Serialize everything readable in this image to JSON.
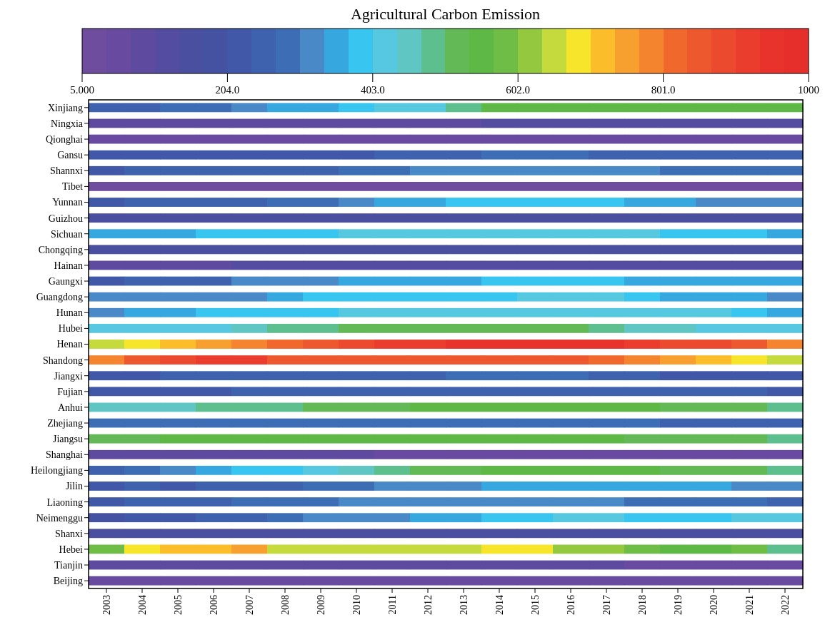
{
  "chart_data": {
    "type": "heatmap",
    "title": "Agricultural Carbon Emission",
    "categories": [
      "2003",
      "2004",
      "2005",
      "2006",
      "2007",
      "2008",
      "2009",
      "2010",
      "2011",
      "2012",
      "2013",
      "2014",
      "2015",
      "2016",
      "2017",
      "2018",
      "2019",
      "2020",
      "2021",
      "2022"
    ],
    "y_categories": [
      "Xinjiang",
      "Ningxia",
      "Qionghai",
      "Gansu",
      "Shannxi",
      "Tibet",
      "Yunnan",
      "Guizhou",
      "Sichuan",
      "Chongqing",
      "Hainan",
      "Gaungxi",
      "Guangdong",
      "Hunan",
      "Hubei",
      "Henan",
      "Shandong",
      "Jiangxi",
      "Fujian",
      "Anhui",
      "Zhejiang",
      "Jiangsu",
      "Shanghai",
      "Heilongjiang",
      "Jilin",
      "Liaoning",
      "Neimenggu",
      "Shanxi",
      "Hebei",
      "Tianjin",
      "Beijing"
    ],
    "clim": [
      5,
      1000
    ],
    "cticks": [
      {
        "value": 5,
        "label": "5.000"
      },
      {
        "value": 204,
        "label": "204.0"
      },
      {
        "value": 403,
        "label": "403.0"
      },
      {
        "value": 602,
        "label": "602.0"
      },
      {
        "value": 801,
        "label": "801.0"
      },
      1000
    ],
    "cells": [
      [
        254,
        254,
        287,
        287,
        320,
        353,
        353,
        386,
        420,
        420,
        486,
        552,
        552,
        552,
        552,
        552,
        552,
        552,
        552,
        552
      ],
      [
        88,
        88,
        88,
        88,
        88,
        88,
        88,
        88,
        88,
        88,
        88,
        121,
        121,
        121,
        121,
        121,
        121,
        121,
        121,
        121
      ],
      [
        55,
        55,
        55,
        55,
        55,
        55,
        55,
        55,
        55,
        55,
        55,
        55,
        55,
        55,
        55,
        55,
        55,
        55,
        55,
        55
      ],
      [
        221,
        221,
        221,
        221,
        221,
        221,
        221,
        221,
        254,
        254,
        254,
        287,
        287,
        287,
        254,
        254,
        254,
        254,
        254,
        254
      ],
      [
        221,
        254,
        254,
        254,
        254,
        254,
        254,
        287,
        287,
        320,
        320,
        320,
        320,
        320,
        320,
        320,
        287,
        287,
        287,
        287
      ],
      [
        22,
        22,
        22,
        22,
        22,
        22,
        22,
        22,
        22,
        22,
        22,
        22,
        22,
        22,
        22,
        22,
        22,
        22,
        22,
        22
      ],
      [
        221,
        254,
        254,
        254,
        254,
        287,
        287,
        320,
        353,
        353,
        386,
        386,
        386,
        386,
        386,
        353,
        353,
        320,
        320,
        320
      ],
      [
        154,
        154,
        154,
        154,
        154,
        154,
        154,
        154,
        154,
        154,
        154,
        154,
        154,
        154,
        154,
        154,
        154,
        154,
        154,
        154
      ],
      [
        353,
        353,
        353,
        386,
        386,
        386,
        386,
        420,
        420,
        420,
        420,
        420,
        420,
        420,
        420,
        420,
        386,
        386,
        386,
        353
      ],
      [
        154,
        154,
        154,
        154,
        154,
        154,
        154,
        154,
        154,
        154,
        154,
        154,
        154,
        154,
        154,
        154,
        154,
        154,
        154,
        154
      ],
      [
        88,
        88,
        88,
        88,
        121,
        121,
        121,
        121,
        121,
        121,
        121,
        121,
        121,
        121,
        121,
        121,
        121,
        121,
        121,
        121
      ],
      [
        221,
        254,
        254,
        254,
        320,
        320,
        320,
        353,
        353,
        353,
        353,
        386,
        386,
        386,
        386,
        353,
        353,
        353,
        353,
        353
      ],
      [
        320,
        320,
        320,
        320,
        320,
        353,
        386,
        386,
        386,
        386,
        386,
        386,
        420,
        420,
        420,
        386,
        353,
        353,
        353,
        320
      ],
      [
        320,
        353,
        353,
        386,
        386,
        386,
        386,
        420,
        420,
        420,
        420,
        420,
        420,
        420,
        420,
        420,
        420,
        420,
        386,
        353
      ],
      [
        420,
        420,
        420,
        420,
        453,
        486,
        486,
        519,
        519,
        519,
        519,
        519,
        519,
        519,
        486,
        453,
        453,
        420,
        420,
        420
      ],
      [
        652,
        685,
        718,
        751,
        784,
        817,
        851,
        884,
        917,
        917,
        950,
        950,
        950,
        950,
        950,
        917,
        884,
        884,
        851,
        784
      ],
      [
        784,
        851,
        884,
        917,
        917,
        851,
        851,
        851,
        851,
        851,
        851,
        851,
        851,
        851,
        817,
        784,
        751,
        718,
        685,
        652
      ],
      [
        221,
        221,
        254,
        254,
        254,
        254,
        254,
        254,
        254,
        254,
        287,
        287,
        287,
        287,
        254,
        254,
        221,
        221,
        221,
        221
      ],
      [
        221,
        221,
        221,
        221,
        254,
        254,
        254,
        254,
        254,
        254,
        254,
        254,
        254,
        254,
        254,
        254,
        254,
        254,
        254,
        221
      ],
      [
        453,
        453,
        453,
        486,
        486,
        486,
        519,
        519,
        519,
        552,
        552,
        552,
        552,
        552,
        552,
        552,
        519,
        519,
        519,
        486
      ],
      [
        287,
        287,
        287,
        287,
        287,
        287,
        287,
        287,
        287,
        287,
        287,
        287,
        287,
        287,
        287,
        287,
        254,
        254,
        254,
        254
      ],
      [
        519,
        519,
        552,
        552,
        552,
        552,
        552,
        552,
        552,
        552,
        552,
        552,
        552,
        552,
        552,
        519,
        519,
        519,
        519,
        486
      ],
      [
        88,
        88,
        88,
        88,
        88,
        88,
        88,
        88,
        55,
        55,
        55,
        55,
        55,
        55,
        55,
        55,
        55,
        55,
        55,
        55
      ],
      [
        254,
        287,
        320,
        353,
        386,
        386,
        420,
        453,
        486,
        519,
        519,
        552,
        552,
        552,
        552,
        552,
        519,
        519,
        519,
        486
      ],
      [
        221,
        254,
        221,
        254,
        254,
        254,
        287,
        287,
        320,
        320,
        320,
        353,
        353,
        353,
        353,
        353,
        353,
        353,
        320,
        320
      ],
      [
        221,
        254,
        254,
        254,
        287,
        287,
        287,
        320,
        320,
        320,
        320,
        320,
        320,
        320,
        320,
        287,
        287,
        287,
        287,
        254
      ],
      [
        187,
        221,
        221,
        254,
        254,
        287,
        320,
        320,
        320,
        353,
        353,
        386,
        386,
        420,
        420,
        386,
        386,
        386,
        420,
        420
      ],
      [
        154,
        154,
        154,
        154,
        154,
        154,
        154,
        154,
        154,
        154,
        154,
        154,
        154,
        154,
        154,
        154,
        154,
        154,
        154,
        154
      ],
      [
        585,
        685,
        718,
        718,
        751,
        652,
        652,
        652,
        652,
        652,
        652,
        685,
        685,
        619,
        619,
        585,
        552,
        552,
        585,
        486
      ],
      [
        88,
        88,
        88,
        88,
        88,
        88,
        88,
        88,
        88,
        88,
        88,
        88,
        88,
        88,
        88,
        55,
        55,
        55,
        55,
        55
      ],
      [
        55,
        55,
        55,
        55,
        55,
        55,
        55,
        55,
        55,
        55,
        55,
        55,
        55,
        55,
        55,
        55,
        55,
        55,
        55,
        55
      ]
    ]
  }
}
